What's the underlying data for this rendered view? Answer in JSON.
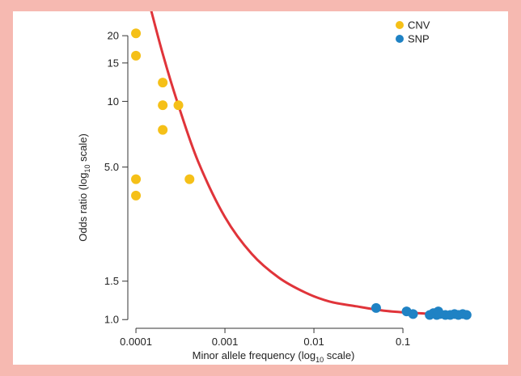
{
  "chart_data": {
    "type": "scatter",
    "xlabel_main": "Minor allele frequency (log",
    "xlabel_sub": "10",
    "xlabel_tail": " scale)",
    "ylabel_main": "Odds ratio (log",
    "ylabel_sub": "10",
    "ylabel_tail": " scale)",
    "x_scale": "log",
    "y_scale": "log",
    "xlim": [
      7e-05,
      0.7
    ],
    "ylim": [
      0.985,
      25
    ],
    "x_ticks": [
      {
        "value": 0.0001,
        "label": "0.0001"
      },
      {
        "value": 0.001,
        "label": "0.001"
      },
      {
        "value": 0.01,
        "label": "0.01"
      },
      {
        "value": 0.1,
        "label": "0.1"
      }
    ],
    "y_ticks": [
      {
        "value": 1.0,
        "label": "1.0"
      },
      {
        "value": 1.5,
        "label": "1.5"
      },
      {
        "value": 5.0,
        "label": "5.0"
      },
      {
        "value": 10,
        "label": "10"
      },
      {
        "value": 15,
        "label": "15"
      },
      {
        "value": 20,
        "label": "20"
      }
    ],
    "grid": false,
    "legend_position": "top-right",
    "series": [
      {
        "name": "CNV",
        "color": "#f5c018",
        "points": [
          {
            "x": 0.0001,
            "y": 20.5
          },
          {
            "x": 0.0001,
            "y": 16.2
          },
          {
            "x": 0.0002,
            "y": 12.2
          },
          {
            "x": 0.0002,
            "y": 9.6
          },
          {
            "x": 0.0003,
            "y": 9.6
          },
          {
            "x": 0.0002,
            "y": 7.4
          },
          {
            "x": 0.0001,
            "y": 4.4
          },
          {
            "x": 0.0004,
            "y": 4.4
          },
          {
            "x": 0.0001,
            "y": 3.7
          }
        ]
      },
      {
        "name": "SNP",
        "color": "#1f82c4",
        "points": [
          {
            "x": 0.05,
            "y": 1.13
          },
          {
            "x": 0.11,
            "y": 1.09
          },
          {
            "x": 0.13,
            "y": 1.06
          },
          {
            "x": 0.2,
            "y": 1.05
          },
          {
            "x": 0.22,
            "y": 1.07
          },
          {
            "x": 0.24,
            "y": 1.05
          },
          {
            "x": 0.25,
            "y": 1.09
          },
          {
            "x": 0.26,
            "y": 1.06
          },
          {
            "x": 0.3,
            "y": 1.05
          },
          {
            "x": 0.34,
            "y": 1.05
          },
          {
            "x": 0.38,
            "y": 1.06
          },
          {
            "x": 0.42,
            "y": 1.05
          },
          {
            "x": 0.47,
            "y": 1.06
          },
          {
            "x": 0.52,
            "y": 1.05
          }
        ]
      }
    ],
    "curve": {
      "color": "#e0343a",
      "points": [
        {
          "x": 0.000145,
          "y": 27
        },
        {
          "x": 0.0002,
          "y": 16.5
        },
        {
          "x": 0.0003,
          "y": 9.6
        },
        {
          "x": 0.0005,
          "y": 5.3
        },
        {
          "x": 0.001,
          "y": 2.95
        },
        {
          "x": 0.002,
          "y": 2.0
        },
        {
          "x": 0.004,
          "y": 1.56
        },
        {
          "x": 0.008,
          "y": 1.33
        },
        {
          "x": 0.015,
          "y": 1.21
        },
        {
          "x": 0.03,
          "y": 1.15
        },
        {
          "x": 0.06,
          "y": 1.1
        },
        {
          "x": 0.12,
          "y": 1.075
        },
        {
          "x": 0.25,
          "y": 1.06
        },
        {
          "x": 0.52,
          "y": 1.05
        }
      ]
    }
  }
}
